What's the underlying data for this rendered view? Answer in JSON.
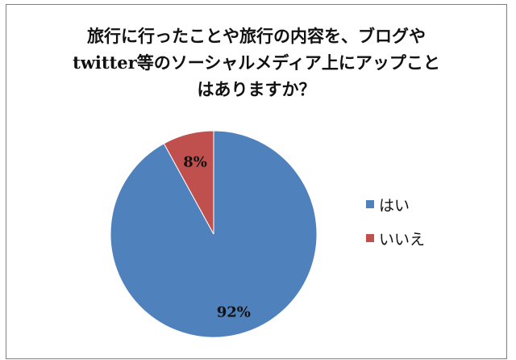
{
  "chart_data": {
    "type": "pie",
    "title_lines": [
      "旅行に行ったことや旅行の内容を、ブログや",
      "twitter等のソーシャルメディア上にアップこと",
      "はありますか？"
    ],
    "categories": [
      "はい",
      "いいえ"
    ],
    "values": [
      92,
      8
    ],
    "data_labels": [
      "92%",
      "8%"
    ],
    "colors": [
      "#4f81bd",
      "#c0504d"
    ],
    "legend_position": "right"
  }
}
